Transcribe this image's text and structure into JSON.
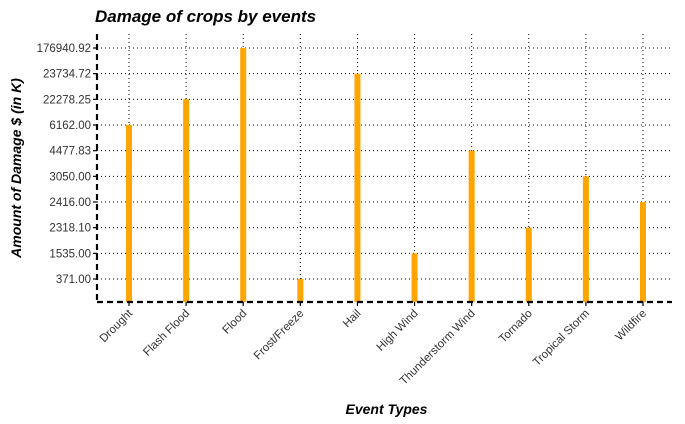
{
  "chart_data": {
    "type": "bar",
    "title": "Damage of crops by events",
    "xlabel": "Event Types",
    "ylabel": "Amount of Damage $ (in K)",
    "categories": [
      "Drought",
      "Flash Flood",
      "Flood",
      "Frost/Freeze",
      "Hail",
      "High Wind",
      "Thunderstorm Wind",
      "Tornado",
      "Tropical Storm",
      "Wildfire"
    ],
    "values": [
      6162.0,
      22278.25,
      176940.92,
      371.0,
      23734.72,
      1535.0,
      4477.83,
      2318.1,
      3050.0,
      2416.0
    ],
    "yticks": [
      "371.00",
      "1535.00",
      "2318.10",
      "2416.00",
      "3050.00",
      "4477.83",
      "6162.00",
      "22278.25",
      "23734.72",
      "176940.92"
    ],
    "y_scale": "ordinal (ticks equally spaced by rank of value)",
    "grid": true,
    "bar_color": "#FFA500"
  }
}
